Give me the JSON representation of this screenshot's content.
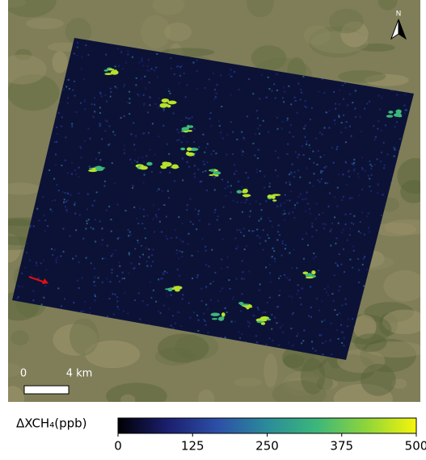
{
  "map": {
    "north_label": "N",
    "scale_bar": {
      "start_label": "0",
      "end_label": "4 km"
    }
  },
  "colorbar": {
    "label": "ΔXCH₄(ppb)",
    "lim": [
      0,
      500
    ],
    "ticks": [
      0,
      125,
      250,
      375,
      500
    ],
    "colors": [
      "#000004",
      "#1b1f6e",
      "#2c4fa8",
      "#2a8c9a",
      "#3cb77a",
      "#8fd53a",
      "#f5f50a"
    ]
  }
}
